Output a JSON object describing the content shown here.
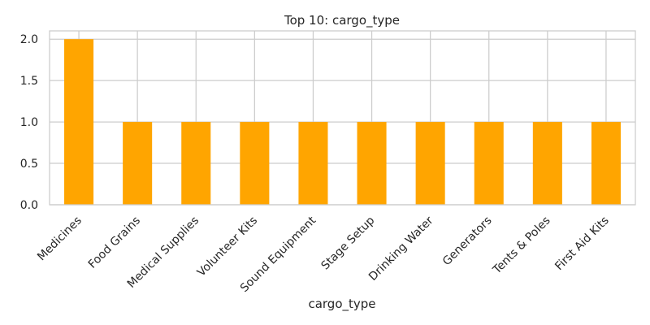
{
  "chart_data": {
    "type": "bar",
    "title": "Top 10: cargo_type",
    "xlabel": "cargo_type",
    "ylabel": "",
    "categories": [
      "Medicines",
      "Food Grains",
      "Medical Supplies",
      "Volunteer Kits",
      "Sound Equipment",
      "Stage Setup",
      "Drinking Water",
      "Generators",
      "Tents & Poles",
      "First Aid Kits"
    ],
    "values": [
      2,
      1,
      1,
      1,
      1,
      1,
      1,
      1,
      1,
      1
    ],
    "ylim": [
      0,
      2.1
    ],
    "yticks": [
      "0.0",
      "0.5",
      "1.0",
      "1.5",
      "2.0"
    ],
    "grid": true,
    "bar_color": "#ffa500",
    "grid_color": "#cccccc"
  }
}
